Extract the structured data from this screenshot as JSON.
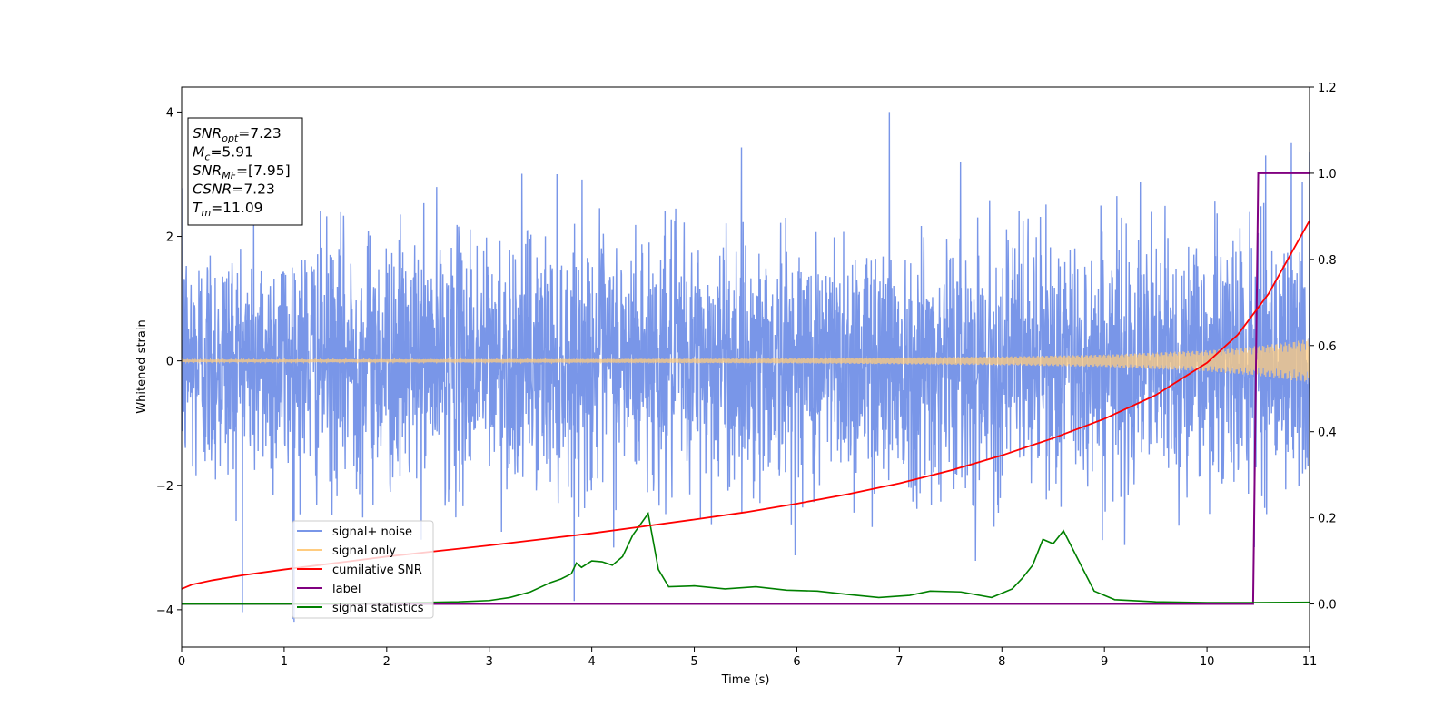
{
  "chart_data": {
    "type": "line",
    "xlabel": "Time (s)",
    "ylabel": "Whitened strain",
    "xlim": [
      0,
      11
    ],
    "ylim_left": [
      -4.6,
      4.4
    ],
    "ylim_right": [
      -0.1,
      1.2
    ],
    "x_ticks": [
      0,
      1,
      2,
      3,
      4,
      5,
      6,
      7,
      8,
      9,
      10,
      11
    ],
    "y_ticks_left": [
      -4,
      -2,
      0,
      2,
      4
    ],
    "y_ticks_right": [
      0.0,
      0.2,
      0.4,
      0.6,
      0.8,
      1.0,
      1.2
    ],
    "grid": false,
    "legend": {
      "placement": "lower-left",
      "entries": [
        "signal+ noise",
        "signal only",
        "cumilative SNR",
        "label",
        "signal statistics"
      ]
    },
    "annotations": [
      {
        "var": "SNR",
        "sub": "opt",
        "value": "=7.23"
      },
      {
        "var": "M",
        "sub": "c",
        "value": "=5.91"
      },
      {
        "var": "SNR",
        "sub": "MF",
        "value": "=[7.95]"
      },
      {
        "var": "CSNR",
        "sub": "",
        "value": "=7.23"
      },
      {
        "var": "T",
        "sub": "m",
        "value": "=11.09"
      }
    ],
    "series": [
      {
        "name": "signal+ noise",
        "axis": "left",
        "color": "#7996e8",
        "noise_sigma": 1.0,
        "extremes": [
          [
            6.9,
            4.0
          ],
          [
            1.08,
            -4.15
          ],
          [
            10.57,
            3.3
          ],
          [
            10.82,
            3.5
          ],
          [
            11.0,
            3.35
          ]
        ]
      },
      {
        "name": "signal only",
        "axis": "left",
        "color": "#ffcc80",
        "envelope": [
          [
            0,
            0.02
          ],
          [
            4,
            0.03
          ],
          [
            6,
            0.04
          ],
          [
            8,
            0.07
          ],
          [
            9,
            0.1
          ],
          [
            10,
            0.17
          ],
          [
            10.5,
            0.24
          ],
          [
            11,
            0.35
          ]
        ]
      },
      {
        "name": "cumilative SNR",
        "axis": "right",
        "color": "#ff0000",
        "x": [
          0,
          0.1,
          0.3,
          0.6,
          1.0,
          1.5,
          2.0,
          2.5,
          3.0,
          3.5,
          4.0,
          4.5,
          5.0,
          5.5,
          6.0,
          6.5,
          7.0,
          7.5,
          8.0,
          8.5,
          9.0,
          9.5,
          10.0,
          10.3,
          10.6,
          11.0
        ],
        "values": [
          0.035,
          0.045,
          0.055,
          0.067,
          0.08,
          0.095,
          0.11,
          0.123,
          0.136,
          0.15,
          0.164,
          0.18,
          0.196,
          0.213,
          0.233,
          0.255,
          0.28,
          0.31,
          0.345,
          0.385,
          0.43,
          0.485,
          0.56,
          0.625,
          0.72,
          0.89
        ]
      },
      {
        "name": "label",
        "axis": "right",
        "color": "#800080",
        "x": [
          0,
          10.45,
          10.5,
          11.0
        ],
        "values": [
          0,
          0,
          1,
          1
        ]
      },
      {
        "name": "signal statistics",
        "axis": "right",
        "color": "#008000",
        "x": [
          0,
          1,
          2,
          2.7,
          3.0,
          3.2,
          3.4,
          3.6,
          3.7,
          3.8,
          3.85,
          3.9,
          4.0,
          4.1,
          4.2,
          4.3,
          4.4,
          4.55,
          4.65,
          4.75,
          5.0,
          5.3,
          5.6,
          5.9,
          6.2,
          6.5,
          6.8,
          7.1,
          7.3,
          7.6,
          7.9,
          8.1,
          8.2,
          8.3,
          8.4,
          8.5,
          8.6,
          8.75,
          8.9,
          9.1,
          9.5,
          10.0,
          10.45,
          11.0
        ],
        "values": [
          0.0,
          0.0,
          0.002,
          0.005,
          0.008,
          0.015,
          0.028,
          0.05,
          0.058,
          0.07,
          0.095,
          0.085,
          0.1,
          0.098,
          0.09,
          0.11,
          0.16,
          0.21,
          0.08,
          0.04,
          0.042,
          0.035,
          0.04,
          0.032,
          0.03,
          0.022,
          0.015,
          0.02,
          0.03,
          0.028,
          0.015,
          0.035,
          0.06,
          0.09,
          0.15,
          0.14,
          0.17,
          0.1,
          0.03,
          0.01,
          0.005,
          0.003,
          0.003,
          0.004
        ]
      }
    ]
  }
}
